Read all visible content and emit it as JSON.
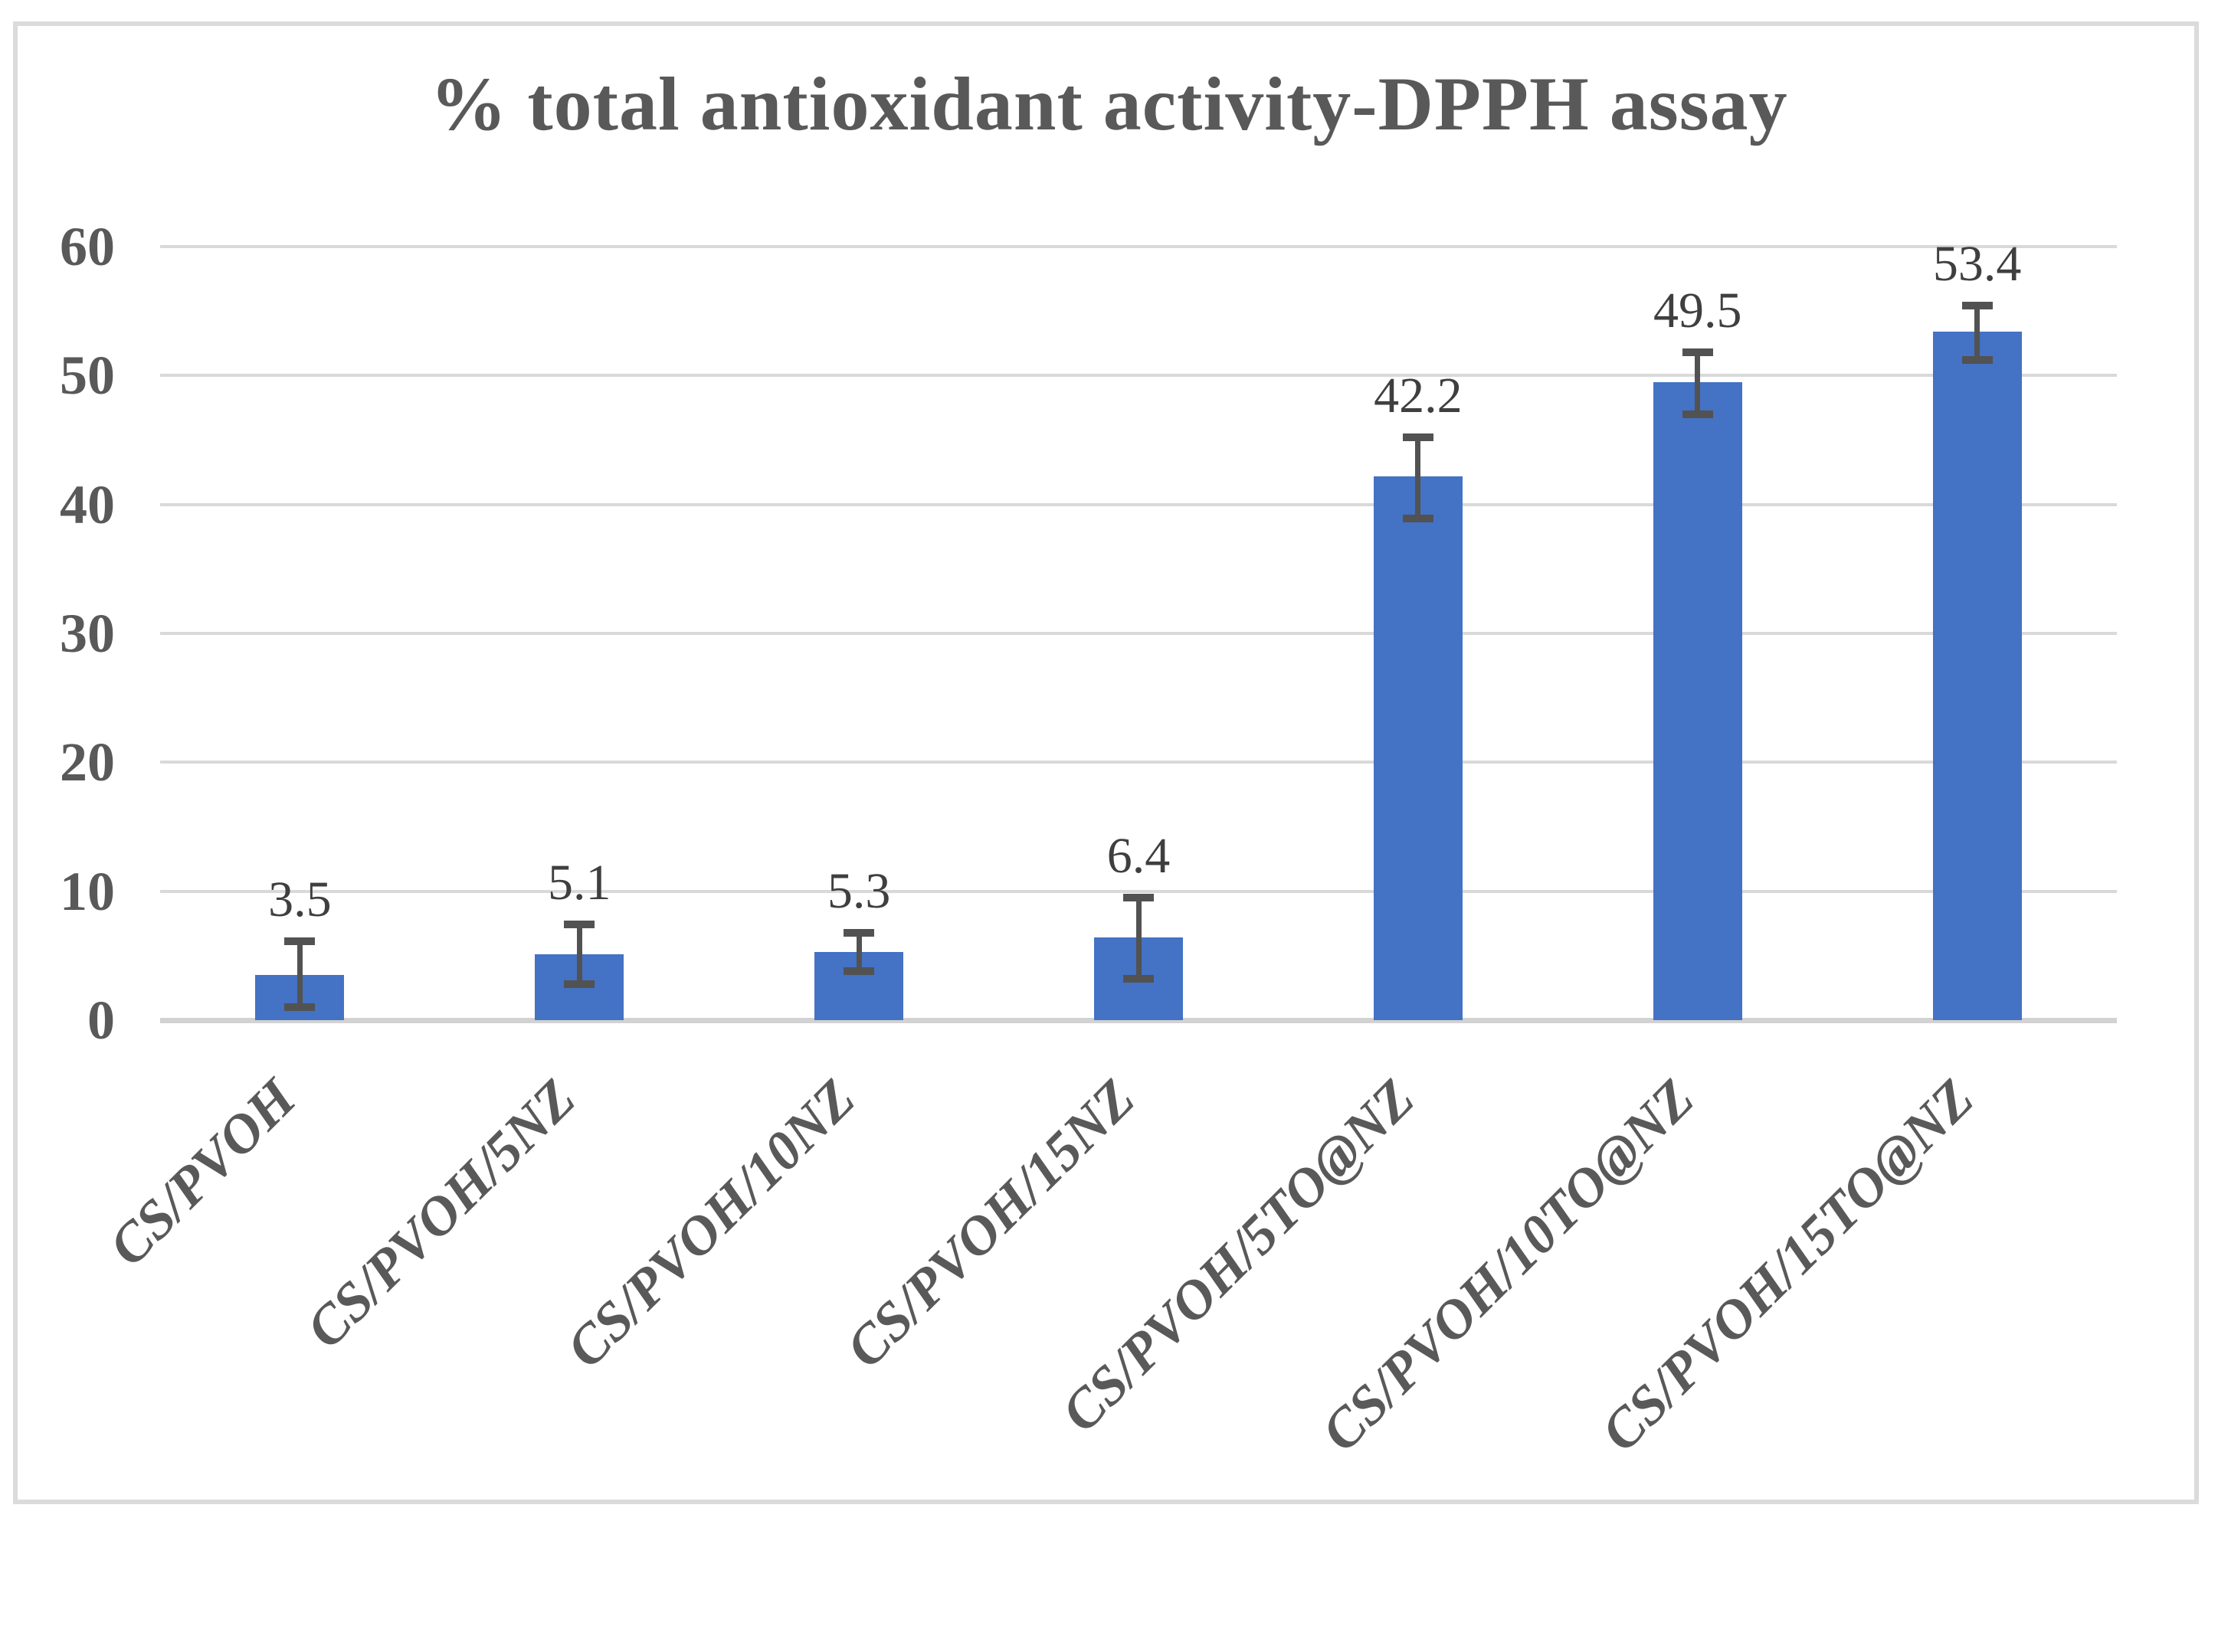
{
  "chart_data": {
    "type": "bar",
    "title": "% total antioxidant activity-DPPH assay",
    "xlabel": "",
    "ylabel": "",
    "ylim": [
      0,
      60
    ],
    "yticks": [
      0,
      10,
      20,
      30,
      40,
      50,
      60
    ],
    "grid": true,
    "legend": false,
    "categories": [
      "CS/PVOH",
      "CS/PVOH/5NZ",
      "CS/PVOH/10NZ",
      "CS/PVOH/15NZ",
      "CS/PVOH/5TO@NZ",
      "CS/PVOH/10TO@NZ",
      "CS/PVOH/15TO@NZ"
    ],
    "values": [
      3.5,
      5.1,
      5.3,
      6.4,
      42.2,
      49.5,
      53.4
    ],
    "data_labels": [
      "3.5",
      "5.1",
      "5.3",
      "6.4",
      "42.2",
      "49.5",
      "53.4"
    ],
    "error_bars": {
      "plus": [
        2.6,
        2.3,
        1.5,
        3.1,
        3.0,
        2.3,
        2.0
      ],
      "minus": [
        2.5,
        2.3,
        1.5,
        3.2,
        3.3,
        2.5,
        2.2
      ]
    },
    "colors": {
      "bar": "#4472C4",
      "gridline": "#D9D9D9",
      "axis_line": "#D2D2D2",
      "error_bar": "#525252",
      "title_text": "#595959",
      "tick_text": "#595959",
      "data_label_text": "#3F3F3F",
      "category_text": "#595959",
      "frame_border": "#DBDBDB",
      "background": "#FFFFFF"
    }
  }
}
